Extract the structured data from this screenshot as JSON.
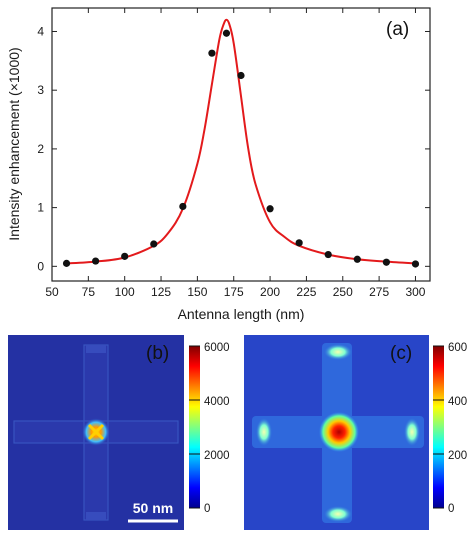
{
  "chart_data": [
    {
      "panel": "(a)",
      "type": "scatter",
      "xlabel": "Antenna length (nm)",
      "ylabel": "Intensity enhancement (×1000)",
      "xlim": [
        50,
        310
      ],
      "ylim": [
        -0.25,
        4.4
      ],
      "xticks": [
        50,
        75,
        100,
        125,
        150,
        175,
        200,
        225,
        250,
        275,
        300
      ],
      "yticks": [
        0,
        1,
        2,
        3,
        4
      ],
      "xtick_labels": [
        "50",
        "75",
        "100",
        "125",
        "150",
        "175",
        "200",
        "225",
        "250",
        "275",
        "300"
      ],
      "ytick_labels": [
        "0",
        "1",
        "2",
        "3",
        "4"
      ],
      "grid": false,
      "series": [
        {
          "kind": "points",
          "color": "#111111",
          "x": [
            60,
            80,
            100,
            120,
            140,
            160,
            170,
            180,
            200,
            220,
            240,
            260,
            280,
            300
          ],
          "y": [
            0.05,
            0.09,
            0.17,
            0.38,
            1.02,
            3.63,
            3.97,
            3.25,
            0.98,
            0.4,
            0.2,
            0.12,
            0.07,
            0.04
          ]
        },
        {
          "kind": "fit-curve",
          "color": "#e31a1c",
          "x": [
            60,
            80,
            100,
            120,
            130,
            140,
            150,
            155,
            160,
            165,
            168,
            170,
            172,
            175,
            180,
            185,
            190,
            200,
            210,
            220,
            240,
            260,
            280,
            300
          ],
          "y": [
            0.05,
            0.08,
            0.15,
            0.35,
            0.57,
            0.98,
            1.75,
            2.35,
            3.1,
            3.85,
            4.12,
            4.2,
            4.12,
            3.8,
            2.9,
            2.0,
            1.4,
            0.75,
            0.5,
            0.35,
            0.2,
            0.12,
            0.08,
            0.05
          ]
        }
      ]
    },
    {
      "panel": "(b)",
      "type": "heatmap",
      "colorbar_ticks": [
        "0",
        "2000",
        "4000",
        "6000"
      ],
      "colorbar_range": [
        0,
        6000
      ],
      "scale_bar": "50 nm"
    },
    {
      "panel": "(c)",
      "type": "heatmap",
      "colorbar_ticks": [
        "0",
        "200",
        "400",
        "600"
      ],
      "colorbar_range": [
        0,
        600
      ]
    }
  ],
  "colors": {
    "jet_background": "#2030a0",
    "fit_line": "#e31a1c",
    "points": "#111111"
  }
}
